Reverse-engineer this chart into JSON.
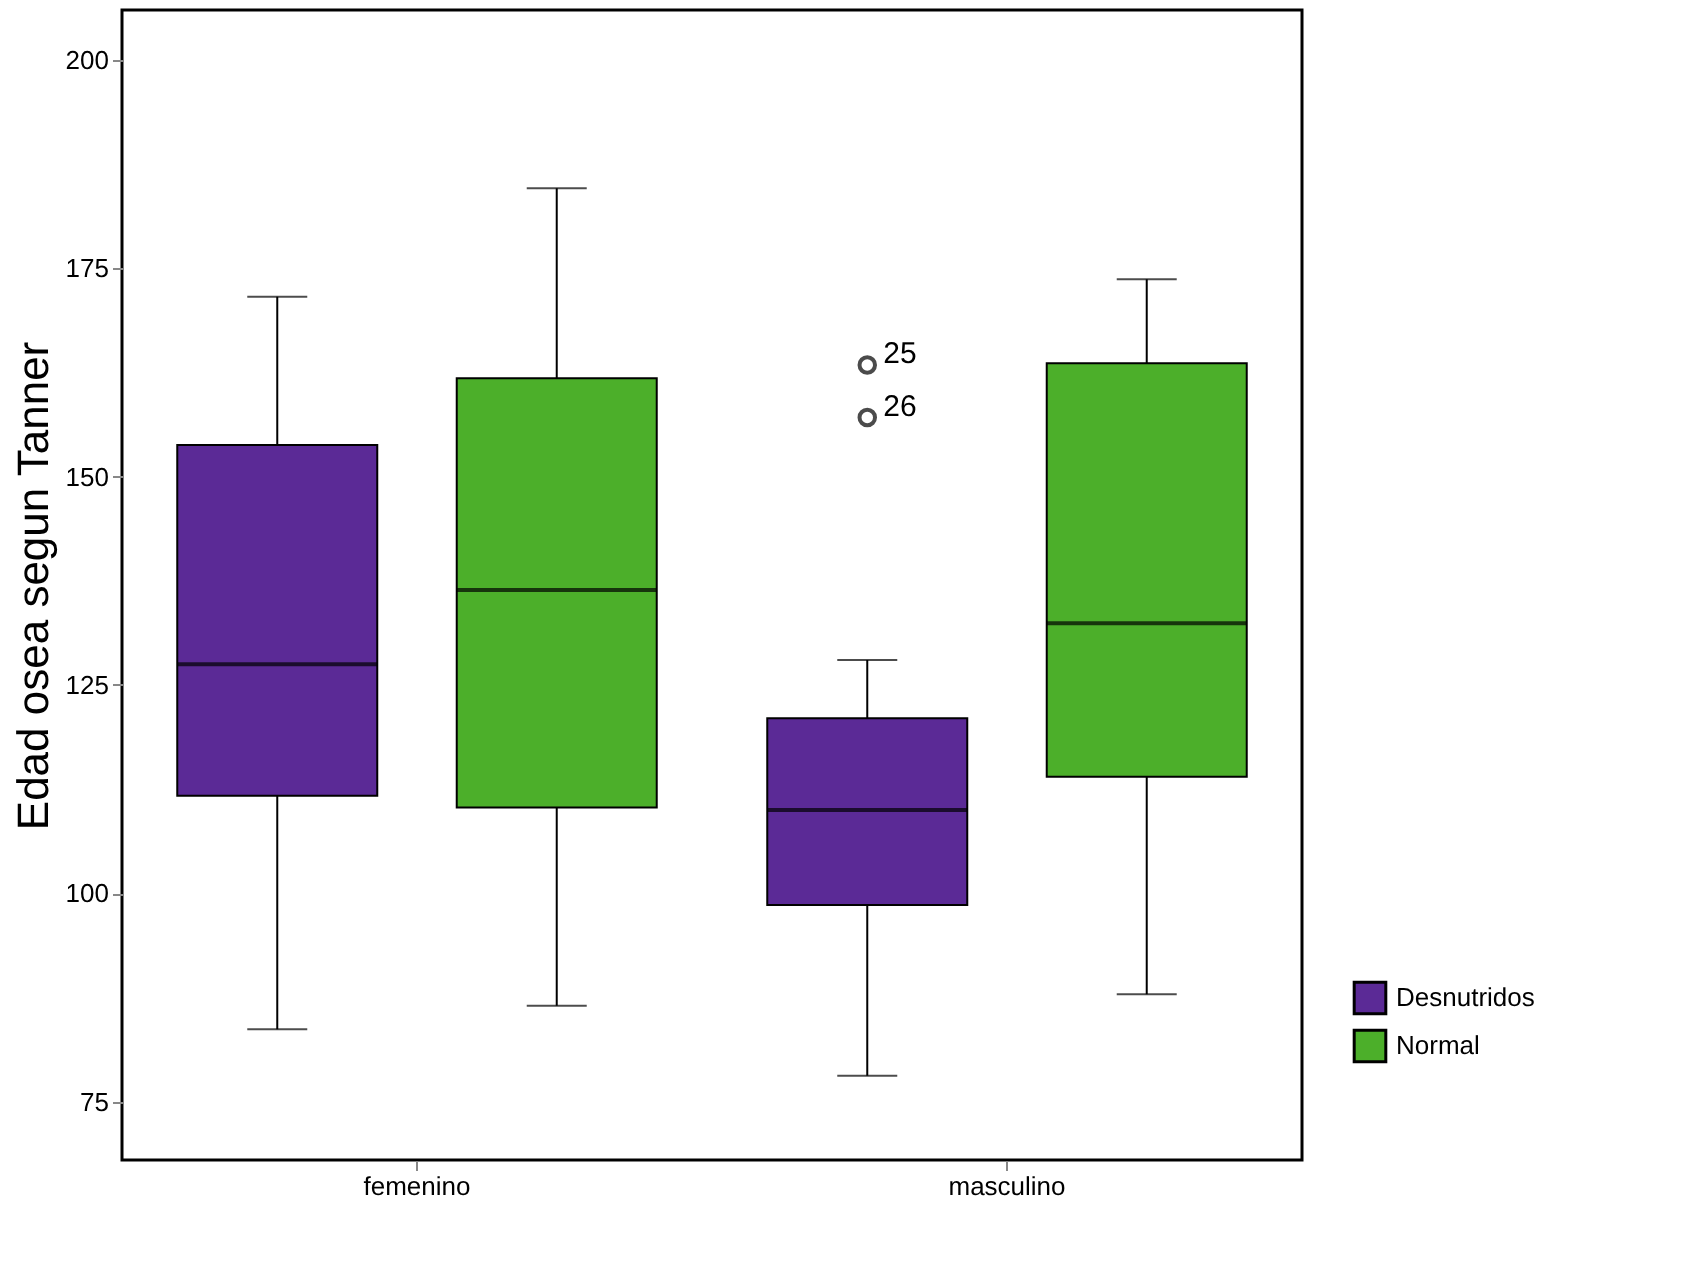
{
  "chart_data": {
    "type": "box",
    "ylabel": "Edad osea segun Tanner",
    "categories": [
      "femenino",
      "masculino"
    ],
    "series": [
      {
        "name": "Desnutridos",
        "color": "#5b2a96",
        "boxes": [
          {
            "low": 83.7,
            "q1": 111.7,
            "median": 127.5,
            "q3": 153.8,
            "high": 171.6
          },
          {
            "low": 78.1,
            "q1": 98.6,
            "median": 110,
            "q3": 121,
            "high": 128,
            "outliers": [
              163.4,
              157.1
            ]
          }
        ]
      },
      {
        "name": "Normal",
        "color": "#4caf2a",
        "boxes": [
          {
            "low": 86.5,
            "q1": 110.3,
            "median": 136.4,
            "q3": 161.8,
            "high": 184.6
          },
          {
            "low": 87.9,
            "q1": 114,
            "median": 132.4,
            "q3": 163.6,
            "high": 173.7
          }
        ]
      }
    ],
    "annotations": [
      "25",
      "26"
    ],
    "ylim": [
      68,
      206
    ],
    "yticks": [
      75,
      100,
      125,
      150,
      175,
      200
    ],
    "grid": false,
    "legend": "right"
  }
}
